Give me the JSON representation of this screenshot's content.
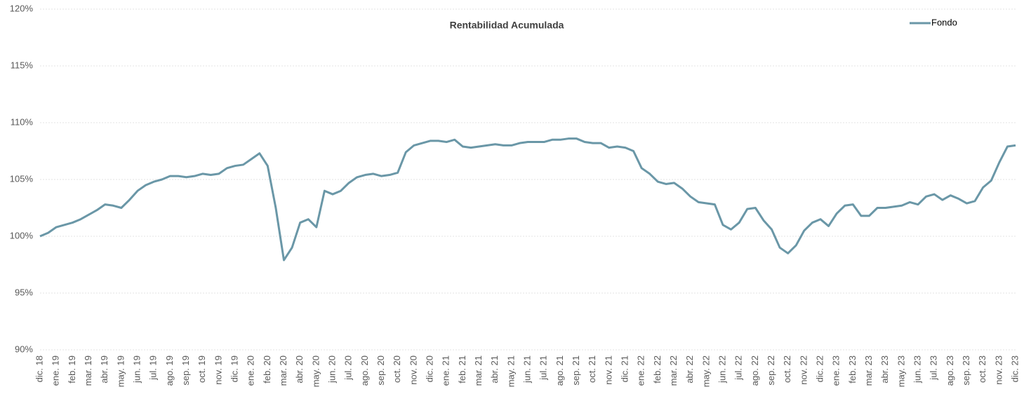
{
  "chart_data": {
    "type": "line",
    "title": "Rentabilidad Acumulada",
    "categories": [
      "dic. 18",
      null,
      "ene. 19",
      null,
      "feb. 19",
      null,
      "mar. 19",
      null,
      "abr. 19",
      null,
      "may. 19",
      null,
      "jun. 19",
      null,
      "jul. 19",
      null,
      "ago. 19",
      null,
      "sep. 19",
      null,
      "oct. 19",
      null,
      "nov. 19",
      null,
      "dic. 19",
      null,
      "ene. 20",
      null,
      "feb. 20",
      null,
      "mar. 20",
      null,
      "abr. 20",
      null,
      "may. 20",
      null,
      "jun. 20",
      null,
      "jul. 20",
      null,
      "ago. 20",
      null,
      "sep. 20",
      null,
      "oct. 20",
      null,
      "nov. 20",
      null,
      "dic. 20",
      null,
      "ene. 21",
      null,
      "feb. 21",
      null,
      "mar. 21",
      null,
      "abr. 21",
      null,
      "may. 21",
      null,
      "jun. 21",
      null,
      "jul. 21",
      null,
      "ago. 21",
      null,
      "sep. 21",
      null,
      "oct. 21",
      null,
      "nov. 21",
      null,
      "dic. 21",
      null,
      "ene. 22",
      null,
      "feb. 22",
      null,
      "mar. 22",
      null,
      "abr. 22",
      null,
      "may. 22",
      null,
      "jun. 22",
      null,
      "jul. 22",
      null,
      "ago. 22",
      null,
      "sep. 22",
      null,
      "oct. 22",
      null,
      "nov. 22",
      null,
      "dic. 22",
      null,
      "ene. 23",
      null,
      "feb. 23",
      null,
      "mar. 23",
      null,
      "abr. 23",
      null,
      "may. 23",
      null,
      "jun. 23",
      null,
      "jul. 23",
      null,
      "ago. 23",
      null,
      "sep. 23",
      null,
      "oct. 23",
      null,
      "nov. 23",
      null,
      "dic. 23"
    ],
    "series": [
      {
        "name": "Fondo",
        "color": "#6a97a7",
        "values": [
          100.0,
          100.3,
          100.8,
          101.0,
          101.2,
          101.5,
          101.9,
          102.3,
          102.8,
          102.7,
          102.5,
          103.2,
          104.0,
          104.5,
          104.8,
          105.0,
          105.3,
          105.3,
          105.2,
          105.3,
          105.5,
          105.4,
          105.5,
          106.0,
          106.2,
          106.3,
          106.8,
          107.3,
          106.2,
          102.5,
          97.9,
          99.0,
          101.2,
          101.5,
          100.8,
          104.0,
          103.7,
          104.0,
          104.7,
          105.2,
          105.4,
          105.5,
          105.3,
          105.4,
          105.6,
          107.4,
          108.0,
          108.2,
          108.4,
          108.4,
          108.3,
          108.5,
          107.9,
          107.8,
          107.9,
          108.0,
          108.1,
          108.0,
          108.0,
          108.2,
          108.3,
          108.3,
          108.3,
          108.5,
          108.5,
          108.6,
          108.6,
          108.3,
          108.2,
          108.2,
          107.8,
          107.9,
          107.8,
          107.5,
          106.0,
          105.5,
          104.8,
          104.6,
          104.7,
          104.2,
          103.5,
          103.0,
          102.9,
          102.8,
          101.0,
          100.6,
          101.2,
          102.4,
          102.5,
          101.4,
          100.6,
          99.0,
          98.5,
          99.2,
          100.5,
          101.2,
          101.5,
          100.9,
          102.0,
          102.7,
          102.8,
          101.8,
          101.8,
          102.5,
          102.5,
          102.6,
          102.7,
          103.0,
          102.8,
          103.5,
          103.7,
          103.2,
          103.6,
          103.3,
          102.9,
          103.1,
          104.3,
          104.9,
          106.5,
          107.9,
          108.0
        ]
      }
    ],
    "ylim": [
      90,
      120
    ],
    "yticks": [
      {
        "value": 90,
        "label": "90%"
      },
      {
        "value": 95,
        "label": "95%"
      },
      {
        "value": 100,
        "label": "100%"
      },
      {
        "value": 105,
        "label": "105%"
      },
      {
        "value": 110,
        "label": "110%"
      },
      {
        "value": 115,
        "label": "115%"
      },
      {
        "value": 120,
        "label": "120%"
      }
    ],
    "grid": true,
    "legend": "top-right"
  }
}
